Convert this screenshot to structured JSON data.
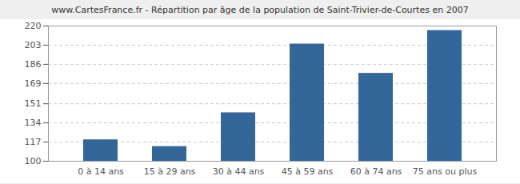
{
  "chart_data": {
    "type": "bar",
    "title": "www.CartesFrance.fr - Répartition par âge de la population de Saint-Trivier-de-Courtes en 2007",
    "categories": [
      "0 à 14 ans",
      "15 à 29 ans",
      "30 à 44 ans",
      "45 à 59 ans",
      "60 à 74 ans",
      "75 ans ou plus"
    ],
    "values": [
      119,
      113,
      143,
      204,
      178,
      216
    ],
    "color": "#336699",
    "ylim": [
      100,
      220
    ],
    "yticks": [
      100,
      117,
      134,
      151,
      169,
      186,
      203,
      220
    ],
    "grid": true
  }
}
